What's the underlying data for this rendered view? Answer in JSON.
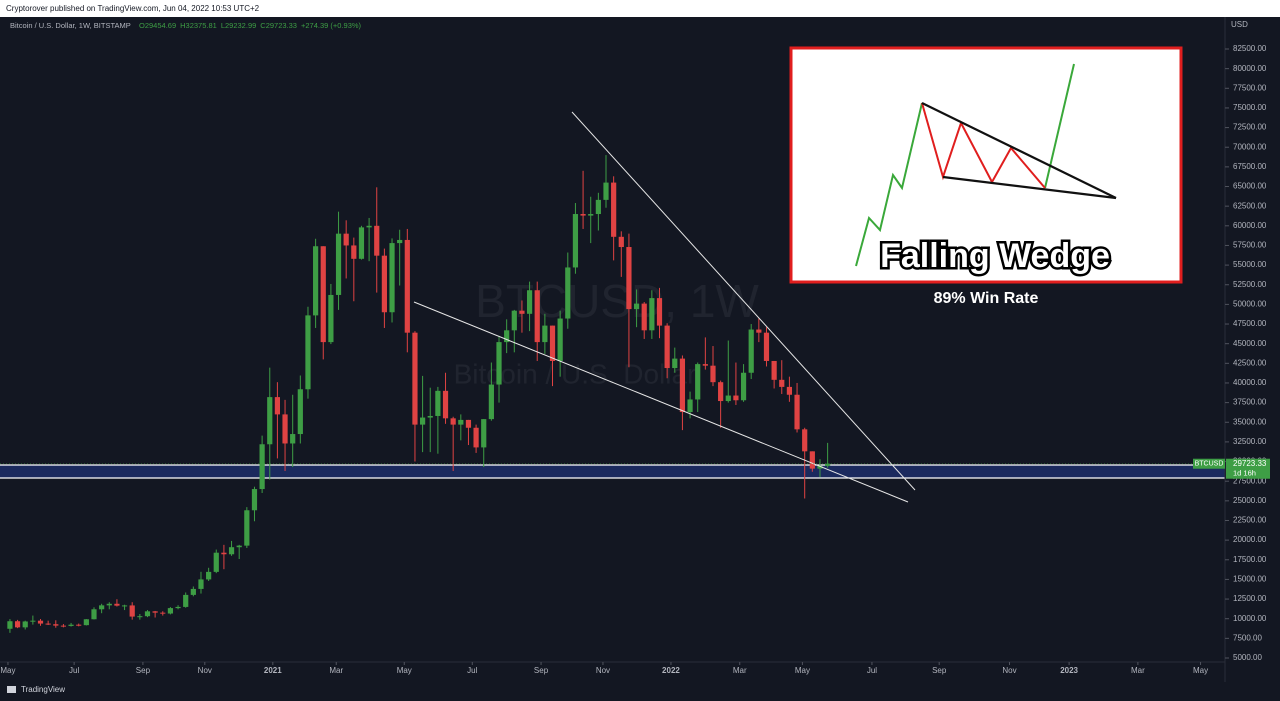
{
  "header": {
    "publisher": "Cryptorover published on TradingView.com, Jun 04, 2022 10:53 UTC+2"
  },
  "chart_data": {
    "type": "candlestick",
    "title": "Bitcoin / U.S. Dollar, 1W, BITSTAMP",
    "ohlc_text": [
      "O29454.69",
      "H32375.81",
      "L29232.99",
      "C29723.33",
      "+274.39 (+0.93%)"
    ],
    "watermark": [
      "BTCUSD, 1W",
      "Bitcoin / U.S. Dollar"
    ],
    "currency": "USD",
    "up_color": "#3e9e45",
    "down_color": "#e04343",
    "open": [
      8720,
      9680,
      8900,
      9650,
      9750,
      9380,
      9300,
      9120,
      9080,
      9240,
      9180,
      9930,
      11200,
      11700,
      11900,
      11660,
      11690,
      10270,
      10320,
      10940,
      10770,
      10660,
      11350,
      11500,
      13030,
      13790,
      15000,
      15960,
      18400,
      18200,
      19100,
      19300,
      23800,
      26500,
      32200,
      38200,
      36000,
      32300,
      33500,
      39200,
      48600,
      57400,
      45200,
      51200,
      59000,
      57500,
      55800,
      59800,
      60000,
      56200,
      49000,
      57800,
      58200,
      46400,
      34700,
      35600,
      35800,
      39000,
      35500,
      34700,
      35300,
      34300,
      31800,
      35400,
      39800,
      45200,
      46700,
      49200,
      48800,
      51800,
      45200,
      47300,
      42800,
      48200,
      54700,
      61500,
      61300,
      61500,
      63300,
      65500,
      58600,
      57300,
      49400,
      50100,
      46700,
      50800,
      47300,
      41900,
      43100,
      36300,
      37900,
      42400,
      42200,
      40100,
      37700,
      38400,
      37800,
      41300,
      46800,
      46400,
      42800,
      40400,
      39500,
      38500,
      34100,
      31300,
      29100,
      29454.69
    ],
    "high": [
      9950,
      9850,
      9750,
      10400,
      9960,
      9750,
      9800,
      9320,
      9460,
      9380,
      9950,
      11450,
      11900,
      12100,
      12480,
      11780,
      12100,
      10600,
      11100,
      10990,
      10950,
      11480,
      11720,
      13340,
      14100,
      15970,
      16480,
      18800,
      19400,
      19900,
      19400,
      24200,
      26800,
      33300,
      41950,
      40100,
      37850,
      38500,
      40950,
      49700,
      58350,
      57400,
      52600,
      61800,
      60700,
      58500,
      60000,
      61000,
      64900,
      57100,
      58400,
      59500,
      59600,
      46600,
      40900,
      39400,
      39500,
      41300,
      35700,
      36000,
      35300,
      34700,
      35400,
      42600,
      46000,
      48100,
      49300,
      50500,
      52900,
      52900,
      48800,
      47300,
      49200,
      56600,
      62900,
      67000,
      63700,
      64200,
      69000,
      66300,
      59300,
      59000,
      51900,
      50300,
      51800,
      52100,
      47600,
      44500,
      43500,
      38900,
      42600,
      45800,
      44700,
      40300,
      45400,
      42600,
      42400,
      47500,
      48200,
      47100,
      42800,
      42900,
      40800,
      40000,
      34300,
      31300,
      30300,
      32375.81
    ],
    "low": [
      8200,
      8800,
      8630,
      9250,
      9100,
      9200,
      8850,
      8900,
      9000,
      9030,
      9140,
      9900,
      10700,
      11200,
      11550,
      11100,
      9880,
      9880,
      10200,
      10150,
      10400,
      10550,
      11200,
      11400,
      12850,
      13200,
      14800,
      15800,
      16300,
      18000,
      17600,
      19000,
      22400,
      26000,
      27700,
      30400,
      28800,
      29300,
      32300,
      38000,
      47000,
      43000,
      44950,
      49300,
      53300,
      50400,
      55700,
      55500,
      51500,
      47000,
      47700,
      52400,
      43900,
      30000,
      31200,
      31200,
      31000,
      34800,
      28800,
      32700,
      32100,
      31100,
      29300,
      35200,
      37500,
      43800,
      43900,
      46400,
      46600,
      42800,
      43700,
      39600,
      40800,
      46900,
      53900,
      59600,
      57800,
      59400,
      62300,
      55600,
      53500,
      42000,
      47100,
      45600,
      45600,
      45700,
      40600,
      41300,
      34000,
      35500,
      36300,
      41700,
      39600,
      34300,
      37500,
      37200,
      37600,
      40500,
      45200,
      42100,
      39300,
      38600,
      37600,
      33700,
      25300,
      28700,
      28000,
      29232.99
    ],
    "close": [
      9680,
      8900,
      9650,
      9750,
      9380,
      9300,
      9120,
      9080,
      9240,
      9180,
      9930,
      11200,
      11700,
      11900,
      11660,
      11690,
      10270,
      10320,
      10940,
      10770,
      10660,
      11350,
      11500,
      13030,
      13790,
      15000,
      15960,
      18400,
      18200,
      19100,
      19300,
      23800,
      26500,
      32200,
      38200,
      36000,
      32300,
      33500,
      39200,
      48600,
      57400,
      45200,
      51200,
      59000,
      57500,
      55800,
      59800,
      60000,
      56200,
      49000,
      57800,
      58200,
      46400,
      34700,
      35600,
      35800,
      39000,
      35500,
      34700,
      35300,
      34300,
      31800,
      35400,
      39800,
      45200,
      46700,
      49200,
      48800,
      51800,
      45200,
      47300,
      42800,
      48200,
      54700,
      61500,
      61300,
      61500,
      63300,
      65500,
      58600,
      57300,
      49400,
      50100,
      46700,
      50800,
      47300,
      41900,
      43100,
      36300,
      37900,
      42400,
      42200,
      40100,
      37700,
      38400,
      37800,
      41300,
      46800,
      46400,
      42800,
      40400,
      39500,
      38500,
      34100,
      31300,
      29100,
      29448.94,
      29723.33
    ],
    "xlim": [
      -1.3,
      159
    ],
    "xticks": [
      {
        "value": -0.26,
        "label": "May"
      },
      {
        "value": 8.4,
        "label": "Jul"
      },
      {
        "value": 17.4,
        "label": "Sep"
      },
      {
        "value": 25.5,
        "label": "Nov"
      },
      {
        "value": 34.4,
        "label": "2021"
      },
      {
        "value": 42.7,
        "label": "Mar"
      },
      {
        "value": 51.6,
        "label": "May"
      },
      {
        "value": 60.5,
        "label": "Jul"
      },
      {
        "value": 69.5,
        "label": "Sep"
      },
      {
        "value": 77.6,
        "label": "Nov"
      },
      {
        "value": 86.5,
        "label": "2022"
      },
      {
        "value": 95.5,
        "label": "Mar"
      },
      {
        "value": 103.7,
        "label": "May"
      },
      {
        "value": 112.8,
        "label": "Jul"
      },
      {
        "value": 121.6,
        "label": "Sep"
      },
      {
        "value": 130.8,
        "label": "Nov"
      },
      {
        "value": 138.6,
        "label": "2023"
      },
      {
        "value": 147.6,
        "label": "Mar"
      },
      {
        "value": 155.8,
        "label": "May"
      }
    ],
    "ylim": [
      5000,
      82500
    ],
    "yticks": [
      {
        "value": 5000,
        "label": "5000.00"
      },
      {
        "value": 7500,
        "label": "7500.00"
      },
      {
        "value": 10000,
        "label": "10000.00"
      },
      {
        "value": 12500,
        "label": "12500.00"
      },
      {
        "value": 15000,
        "label": "15000.00"
      },
      {
        "value": 17500,
        "label": "17500.00"
      },
      {
        "value": 20000,
        "label": "20000.00"
      },
      {
        "value": 22500,
        "label": "22500.00"
      },
      {
        "value": 25000,
        "label": "25000.00"
      },
      {
        "value": 27500,
        "label": "27500.00"
      },
      {
        "value": 30000,
        "label": "30000.00"
      },
      {
        "value": 32500,
        "label": "32500.00"
      },
      {
        "value": 35000,
        "label": "35000.00"
      },
      {
        "value": 37500,
        "label": "37500.00"
      },
      {
        "value": 40000,
        "label": "40000.00"
      },
      {
        "value": 42500,
        "label": "42500.00"
      },
      {
        "value": 45000,
        "label": "45000.00"
      },
      {
        "value": 47500,
        "label": "47500.00"
      },
      {
        "value": 50000,
        "label": "50000.00"
      },
      {
        "value": 52500,
        "label": "52500.00"
      },
      {
        "value": 55000,
        "label": "55000.00"
      },
      {
        "value": 57500,
        "label": "57500.00"
      },
      {
        "value": 60000,
        "label": "60000.00"
      },
      {
        "value": 62500,
        "label": "62500.00"
      },
      {
        "value": 65000,
        "label": "65000.00"
      },
      {
        "value": 67500,
        "label": "67500.00"
      },
      {
        "value": 70000,
        "label": "70000.00"
      },
      {
        "value": 72500,
        "label": "72500.00"
      },
      {
        "value": 75000,
        "label": "75000.00"
      },
      {
        "value": 77500,
        "label": "77500.00"
      },
      {
        "value": 80000,
        "label": "80000.00"
      },
      {
        "value": 82500,
        "label": "82500.00"
      }
    ],
    "last_price": {
      "symbol": "BTCUSD",
      "value": 29723.33,
      "countdown": "1d 16h"
    }
  },
  "inset": {
    "title": "Falling Wedge",
    "caption": "89% Win Rate"
  },
  "footer": {
    "brand": "TradingView"
  }
}
